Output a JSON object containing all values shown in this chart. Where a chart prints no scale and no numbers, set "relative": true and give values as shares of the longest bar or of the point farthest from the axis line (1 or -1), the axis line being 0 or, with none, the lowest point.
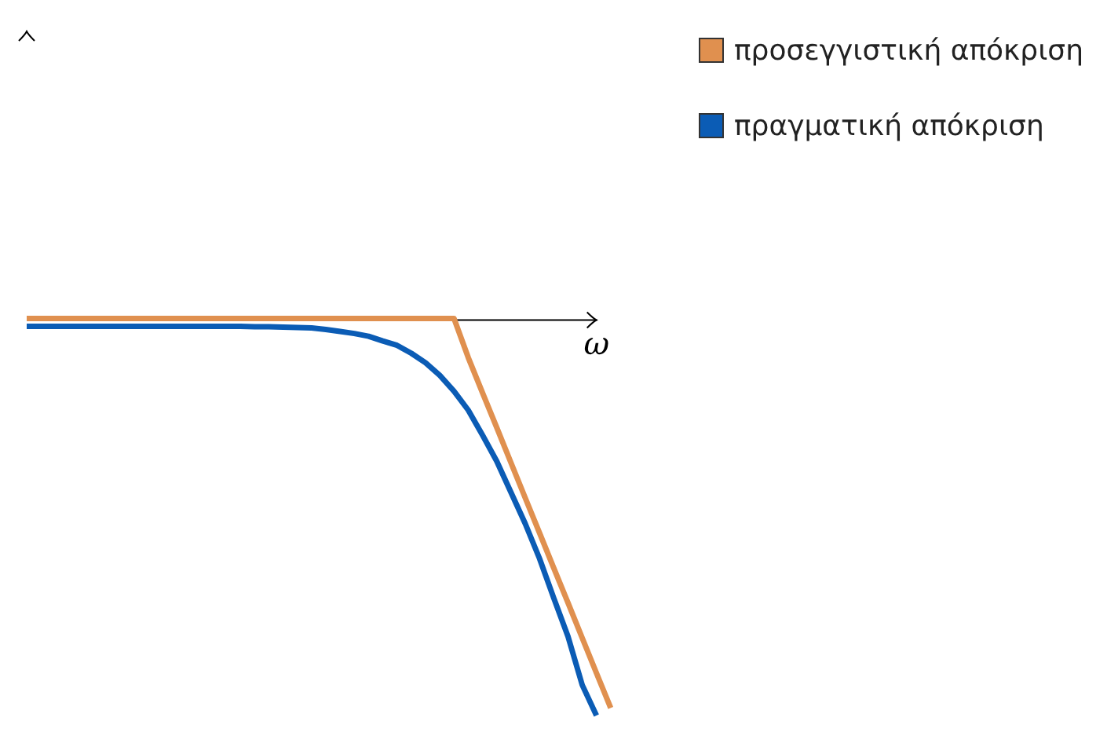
{
  "chart_data": {
    "type": "line",
    "annotations": [
      "ω"
    ],
    "relative": true,
    "grid": false,
    "legend": "top right",
    "marker": "none",
    "line_style": "solid",
    "categories": [
      null,
      null,
      null,
      null,
      null,
      null,
      null,
      null,
      null,
      null,
      null,
      null,
      null,
      null,
      null,
      null,
      null,
      null,
      null,
      null,
      null,
      null,
      null,
      null,
      null,
      null,
      null,
      null,
      null,
      null,
      null,
      null,
      null,
      null,
      null,
      null,
      null,
      null,
      null,
      null,
      null,
      null,
      null
    ],
    "series": [
      {
        "name": "προσεγγιστική απόκριση",
        "color": "#e0904f",
        "values": [
          0.004,
          0.004,
          0.004,
          0.004,
          0.004,
          0.004,
          0.004,
          0.004,
          0.004,
          0.004,
          0.004,
          0.004,
          0.004,
          0.004,
          0.004,
          0.004,
          0.004,
          0.004,
          0.004,
          0.004,
          0.004,
          0.004,
          0.004,
          0.004,
          0.004,
          0.004,
          0.004,
          0.004,
          0.004,
          0.004,
          0.004,
          -0.095,
          -0.184,
          -0.272,
          -0.361,
          -0.45,
          -0.538,
          -0.627,
          -0.715,
          -0.804,
          -0.893,
          -0.981,
          null
        ]
      },
      {
        "name": "πραγματική απόκριση",
        "color": "#0b5cb5",
        "values": [
          -0.016,
          -0.016,
          -0.016,
          -0.016,
          -0.016,
          -0.016,
          -0.016,
          -0.016,
          -0.016,
          -0.016,
          -0.016,
          -0.016,
          -0.016,
          -0.016,
          -0.016,
          -0.016,
          -0.017,
          -0.017,
          -0.018,
          -0.019,
          -0.02,
          -0.024,
          -0.029,
          -0.034,
          -0.041,
          -0.053,
          -0.064,
          -0.084,
          -0.108,
          -0.14,
          -0.18,
          -0.228,
          -0.291,
          -0.357,
          -0.436,
          -0.515,
          -0.603,
          -0.703,
          -0.8,
          -0.923,
          -1,
          null,
          null
        ]
      }
    ]
  }
}
